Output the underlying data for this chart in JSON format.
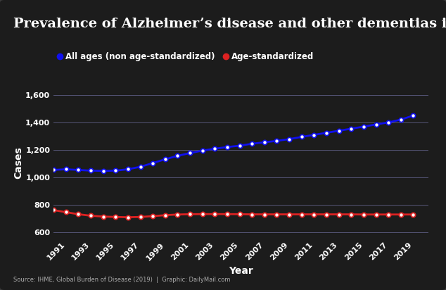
{
  "title": "Prevalence of Alzheimer’s disease and other dementias in US",
  "xlabel": "Year",
  "ylabel": "Cases",
  "source_text": "Source: IHME, Global Burden of Disease (2019)  |  Graphic: DailyMail.com",
  "legend_labels": [
    "All ages (non age-standardized)",
    "Age-standardized"
  ],
  "years": [
    1990,
    1991,
    1992,
    1993,
    1994,
    1995,
    1996,
    1997,
    1998,
    1999,
    2000,
    2001,
    2002,
    2003,
    2004,
    2005,
    2006,
    2007,
    2008,
    2009,
    2010,
    2011,
    2012,
    2013,
    2014,
    2015,
    2016,
    2017,
    2018,
    2019
  ],
  "all_ages": [
    1055,
    1060,
    1055,
    1050,
    1048,
    1050,
    1060,
    1078,
    1105,
    1133,
    1158,
    1178,
    1196,
    1210,
    1222,
    1232,
    1246,
    1257,
    1267,
    1280,
    1296,
    1311,
    1326,
    1341,
    1356,
    1371,
    1387,
    1402,
    1422,
    1452
  ],
  "age_std": [
    762,
    747,
    732,
    721,
    715,
    712,
    710,
    712,
    718,
    725,
    730,
    732,
    733,
    733,
    733,
    732,
    731,
    731,
    731,
    731,
    731,
    731,
    731,
    731,
    731,
    730,
    730,
    730,
    730,
    730
  ],
  "all_ages_color": "#1010ee",
  "age_std_color": "#dd2222",
  "outer_bg_color": "#3a3a3a",
  "panel_bg_color": "#1c1c1c",
  "text_color": "#ffffff",
  "grid_color": "#555577",
  "yticks": [
    600,
    800,
    1000,
    1200,
    1400,
    1600
  ],
  "ylim": [
    560,
    1660
  ],
  "xlim": [
    1990.0,
    2020.2
  ],
  "xtick_years": [
    1991,
    1993,
    1995,
    1997,
    1999,
    2001,
    2003,
    2005,
    2007,
    2009,
    2011,
    2013,
    2015,
    2017,
    2019
  ],
  "marker": "o",
  "markersize": 4.5,
  "linewidth": 2.0,
  "title_fontsize": 14,
  "legend_fontsize": 8.5,
  "tick_fontsize": 8,
  "label_fontsize": 10,
  "source_fontsize": 6
}
